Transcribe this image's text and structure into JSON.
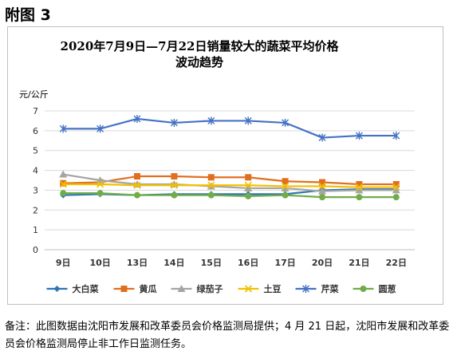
{
  "figure_label": "附图 3",
  "note": "备注：此图数据由沈阳市发展和改革委员会价格监测局提供；4 月 21 日起，沈阳市发展和改革委员会价格监测局停止非工作日监测任务。",
  "chart_data": {
    "type": "line",
    "title_line1": "2020年7月9日—7月22日销量较大的蔬菜平均价格",
    "title_line2": "波动趋势",
    "ylabel": "元/公斤",
    "xlabel": "",
    "categories": [
      "9日",
      "10日",
      "13日",
      "14日",
      "15日",
      "16日",
      "17日",
      "20日",
      "21日",
      "22日"
    ],
    "ylim": [
      0,
      7
    ],
    "yticks": [
      0,
      1,
      2,
      3,
      4,
      5,
      6,
      7
    ],
    "grid": true,
    "legend_position": "bottom",
    "series": [
      {
        "name": "大白菜",
        "color": "#2e75b6",
        "marker": "diamond",
        "values": [
          2.75,
          2.8,
          2.75,
          2.8,
          2.8,
          2.8,
          2.8,
          3.0,
          3.05,
          3.05
        ]
      },
      {
        "name": "黄瓜",
        "color": "#e07020",
        "marker": "square",
        "values": [
          3.35,
          3.4,
          3.7,
          3.7,
          3.65,
          3.65,
          3.45,
          3.4,
          3.3,
          3.3
        ]
      },
      {
        "name": "绿茄子",
        "color": "#a5a5a5",
        "marker": "triangle",
        "values": [
          3.8,
          3.5,
          3.3,
          3.3,
          3.2,
          3.1,
          3.1,
          2.95,
          3.0,
          3.0
        ]
      },
      {
        "name": "土豆",
        "color": "#f2c000",
        "marker": "x",
        "values": [
          3.3,
          3.3,
          3.25,
          3.25,
          3.25,
          3.25,
          3.2,
          3.2,
          3.15,
          3.15
        ]
      },
      {
        "name": "芹菜",
        "color": "#4472c4",
        "marker": "star",
        "values": [
          6.1,
          6.1,
          6.6,
          6.4,
          6.5,
          6.5,
          6.4,
          5.65,
          5.75,
          5.75
        ]
      },
      {
        "name": "圆葱",
        "color": "#70ad47",
        "marker": "circle",
        "values": [
          2.85,
          2.85,
          2.75,
          2.75,
          2.75,
          2.7,
          2.75,
          2.65,
          2.65,
          2.65
        ]
      }
    ]
  }
}
